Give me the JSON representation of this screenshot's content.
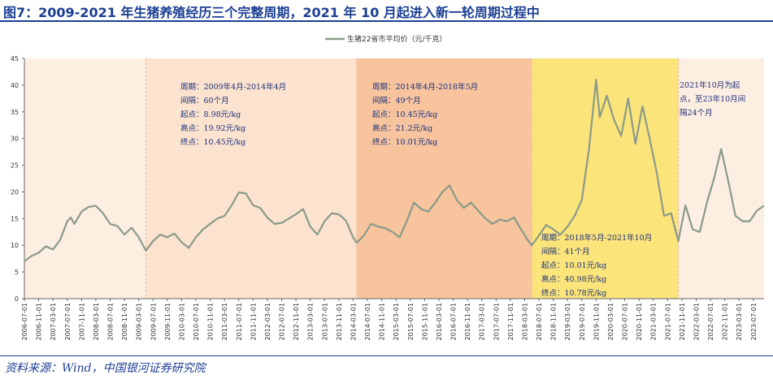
{
  "title": "图7：2009-2021 年生猪养殖经历三个完整周期，2021 年 10 月起进入新一轮周期过程中",
  "source": "资料来源：Wind，中国银河证券研究院",
  "colors": {
    "title": "#1c3f94",
    "series": "#8a9a8a",
    "period1": "#fbe3cf",
    "period2": "#f7c49e",
    "period3": "#fbe47a",
    "period4": "#fdeee2"
  },
  "chart_data": {
    "type": "line",
    "title": "",
    "xlabel": "",
    "ylabel": "",
    "ylim": [
      0,
      45
    ],
    "yticks": [
      0,
      5,
      10,
      15,
      20,
      25,
      30,
      35,
      40,
      45
    ],
    "x_ticks": [
      "2006-07-01",
      "2006-11-01",
      "2007-03-01",
      "2007-07-01",
      "2007-11-01",
      "2008-03-01",
      "2008-07-01",
      "2008-11-01",
      "2009-03-01",
      "2009-07-01",
      "2009-11-01",
      "2010-03-01",
      "2010-07-01",
      "2010-11-01",
      "2011-03-01",
      "2011-07-01",
      "2011-11-01",
      "2012-03-01",
      "2012-07-01",
      "2012-11-01",
      "2013-03-01",
      "2013-07-01",
      "2013-11-01",
      "2014-03-01",
      "2014-07-01",
      "2014-11-01",
      "2015-03-01",
      "2015-07-01",
      "2015-11-01",
      "2016-03-01",
      "2016-07-01",
      "2016-11-01",
      "2017-03-01",
      "2017-07-01",
      "2017-11-01",
      "2018-03-01",
      "2018-07-01",
      "2018-11-01",
      "2019-03-01",
      "2019-07-01",
      "2019-11-01",
      "2020-03-01",
      "2020-07-01",
      "2020-11-01",
      "2021-03-01",
      "2021-07-01",
      "2021-11-01",
      "2022-03-01",
      "2022-07-01",
      "2022-11-01",
      "2023-03-01",
      "2023-07-01"
    ],
    "x_start": "2006-07-01",
    "x_end": "2023-10-01",
    "legend": {
      "label": "生猪22省市平均价（元/千克）",
      "position": "top-center"
    },
    "series": [
      {
        "name": "生猪22省市平均价（元/千克）",
        "points": [
          [
            "2006-07-01",
            7.0
          ],
          [
            "2006-09-01",
            8.0
          ],
          [
            "2006-11-01",
            8.6
          ],
          [
            "2007-01-01",
            9.8
          ],
          [
            "2007-03-01",
            9.2
          ],
          [
            "2007-05-01",
            11.0
          ],
          [
            "2007-07-01",
            14.5
          ],
          [
            "2007-08-01",
            15.2
          ],
          [
            "2007-09-01",
            14.0
          ],
          [
            "2007-11-01",
            16.3
          ],
          [
            "2008-01-01",
            17.2
          ],
          [
            "2008-03-01",
            17.4
          ],
          [
            "2008-05-01",
            16.0
          ],
          [
            "2008-07-01",
            14.0
          ],
          [
            "2008-09-01",
            13.6
          ],
          [
            "2008-11-01",
            12.0
          ],
          [
            "2009-01-01",
            13.3
          ],
          [
            "2009-03-01",
            11.5
          ],
          [
            "2009-05-01",
            9.0
          ],
          [
            "2009-07-01",
            10.8
          ],
          [
            "2009-09-01",
            12.0
          ],
          [
            "2009-11-01",
            11.5
          ],
          [
            "2010-01-01",
            12.2
          ],
          [
            "2010-03-01",
            10.6
          ],
          [
            "2010-05-01",
            9.5
          ],
          [
            "2010-07-01",
            11.5
          ],
          [
            "2010-09-01",
            13.0
          ],
          [
            "2010-11-01",
            14.0
          ],
          [
            "2011-01-01",
            15.0
          ],
          [
            "2011-03-01",
            15.5
          ],
          [
            "2011-05-01",
            17.5
          ],
          [
            "2011-07-01",
            19.9
          ],
          [
            "2011-09-01",
            19.7
          ],
          [
            "2011-11-01",
            17.5
          ],
          [
            "2012-01-01",
            17.0
          ],
          [
            "2012-03-01",
            15.2
          ],
          [
            "2012-05-01",
            14.0
          ],
          [
            "2012-07-01",
            14.2
          ],
          [
            "2012-09-01",
            15.0
          ],
          [
            "2012-11-01",
            15.8
          ],
          [
            "2013-01-01",
            16.8
          ],
          [
            "2013-03-01",
            13.5
          ],
          [
            "2013-05-01",
            12.0
          ],
          [
            "2013-07-01",
            14.5
          ],
          [
            "2013-09-01",
            16.0
          ],
          [
            "2013-11-01",
            15.8
          ],
          [
            "2014-01-01",
            14.6
          ],
          [
            "2014-03-01",
            11.5
          ],
          [
            "2014-04-01",
            10.45
          ],
          [
            "2014-06-01",
            11.8
          ],
          [
            "2014-08-01",
            14.0
          ],
          [
            "2014-10-01",
            13.5
          ],
          [
            "2014-12-01",
            13.2
          ],
          [
            "2015-02-01",
            12.5
          ],
          [
            "2015-04-01",
            11.5
          ],
          [
            "2015-06-01",
            14.5
          ],
          [
            "2015-08-01",
            18.0
          ],
          [
            "2015-10-01",
            16.8
          ],
          [
            "2015-12-01",
            16.3
          ],
          [
            "2016-02-01",
            18.0
          ],
          [
            "2016-04-01",
            20.0
          ],
          [
            "2016-06-01",
            21.2
          ],
          [
            "2016-08-01",
            18.5
          ],
          [
            "2016-10-01",
            17.0
          ],
          [
            "2016-12-01",
            18.0
          ],
          [
            "2017-02-01",
            16.5
          ],
          [
            "2017-04-01",
            15.0
          ],
          [
            "2017-06-01",
            14.0
          ],
          [
            "2017-08-01",
            14.8
          ],
          [
            "2017-10-01",
            14.5
          ],
          [
            "2017-12-01",
            15.2
          ],
          [
            "2018-02-01",
            13.0
          ],
          [
            "2018-04-01",
            10.8
          ],
          [
            "2018-05-01",
            10.01
          ],
          [
            "2018-07-01",
            11.8
          ],
          [
            "2018-09-01",
            13.8
          ],
          [
            "2018-11-01",
            13.0
          ],
          [
            "2019-01-01",
            12.0
          ],
          [
            "2019-03-01",
            13.5
          ],
          [
            "2019-05-01",
            15.5
          ],
          [
            "2019-07-01",
            18.5
          ],
          [
            "2019-09-01",
            28.0
          ],
          [
            "2019-11-01",
            40.98
          ],
          [
            "2019-12-01",
            34.0
          ],
          [
            "2020-02-01",
            38.0
          ],
          [
            "2020-04-01",
            33.5
          ],
          [
            "2020-06-01",
            30.5
          ],
          [
            "2020-08-01",
            37.5
          ],
          [
            "2020-10-01",
            29.0
          ],
          [
            "2020-12-01",
            36.0
          ],
          [
            "2021-02-01",
            30.0
          ],
          [
            "2021-04-01",
            23.5
          ],
          [
            "2021-06-01",
            15.5
          ],
          [
            "2021-08-01",
            16.0
          ],
          [
            "2021-10-01",
            10.78
          ],
          [
            "2021-12-01",
            17.5
          ],
          [
            "2022-02-01",
            13.0
          ],
          [
            "2022-04-01",
            12.5
          ],
          [
            "2022-06-01",
            18.0
          ],
          [
            "2022-08-01",
            22.5
          ],
          [
            "2022-10-01",
            28.0
          ],
          [
            "2022-12-01",
            22.0
          ],
          [
            "2023-02-01",
            15.5
          ],
          [
            "2023-04-01",
            14.5
          ],
          [
            "2023-06-01",
            14.5
          ],
          [
            "2023-08-01",
            16.5
          ],
          [
            "2023-10-01",
            17.4
          ]
        ]
      }
    ],
    "periods": [
      {
        "start": "2009-05-01",
        "end": "2014-04-01",
        "color": "#fbe3cf"
      },
      {
        "start": "2014-04-01",
        "end": "2018-05-01",
        "color": "#f7c49e"
      },
      {
        "start": "2018-05-01",
        "end": "2021-10-01",
        "color": "#fbe47a"
      },
      {
        "start": "2021-10-01",
        "end": "2023-10-01",
        "color": "#fdeee2"
      },
      {
        "start": "2006-07-01",
        "end": "2009-05-01",
        "color": "#fdeee2"
      }
    ],
    "annotations": [
      {
        "lines": [
          "周期：2009年4月-2014年4月",
          "间隔：60个月",
          "起点：8.98元/kg",
          "高点：19.92元/kg",
          "终点：10.45元/kg"
        ]
      },
      {
        "lines": [
          "周期：2014年4月-2018年5月",
          "间隔：49个月",
          "起点：10.45元/kg",
          "高点：21.2元/kg",
          "终点：10.01元/kg"
        ]
      },
      {
        "lines": [
          "周期：2018年5月-2021年10月",
          "间隔：41个月",
          "起点：10.01元/kg",
          "高点：40.98元/kg",
          "终点：10.78元/kg"
        ]
      },
      {
        "lines": [
          "2021年10月为起",
          "点，至23年10月间",
          "隔24个月"
        ]
      }
    ]
  }
}
